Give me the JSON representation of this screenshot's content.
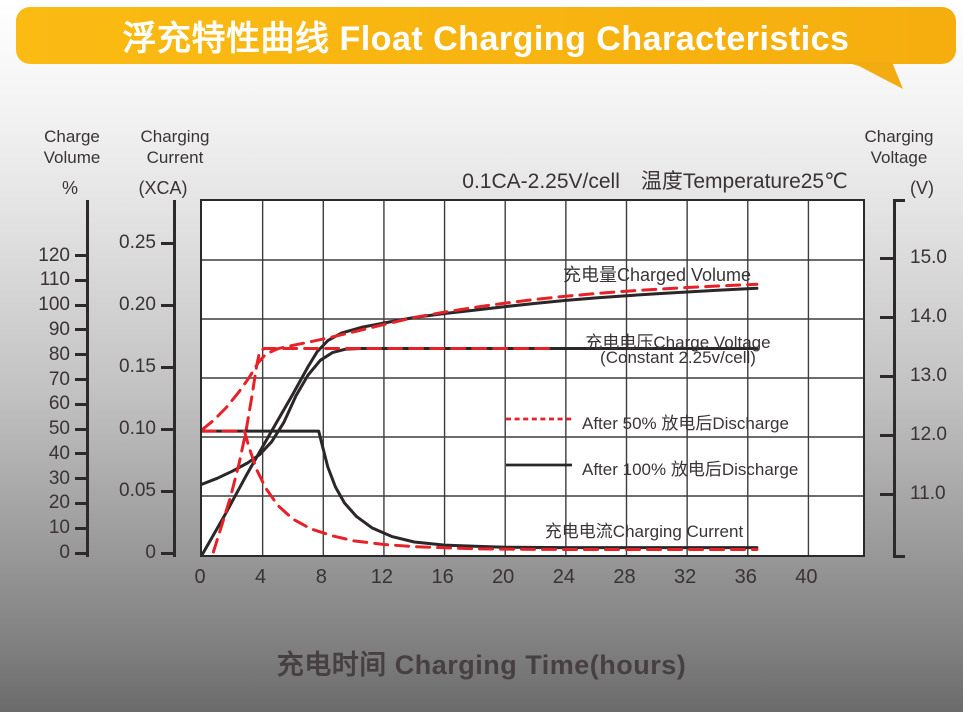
{
  "header": {
    "title": "浮充特性曲线 Float Charging Characteristics",
    "bg_color": "#F7B512"
  },
  "labels": {
    "charge_volume_1": "Charge",
    "charge_volume_2": "Volume",
    "unit_volume": "%",
    "charging_current_1": "Charging",
    "charging_current_2": "Current",
    "unit_current": "(XCA)",
    "charging_voltage_1": "Charging",
    "charging_voltage_2": "Voltage",
    "unit_voltage": "(V)"
  },
  "annotations": {
    "condition": "0.1CA-2.25V/cell　温度Temperature25℃",
    "charged_volume": "充电量Charged Volume",
    "charge_voltage_line1": "充电电压Charge Voltage",
    "charge_voltage_line2": "(Constant 2.25v/cell)",
    "charging_current": "充电电流Charging Current",
    "x_axis_title": "充电时间 Charging Time(hours)"
  },
  "legend": [
    {
      "label": "After 50% 放电后Discharge",
      "color": "#E62128",
      "style": "dashed"
    },
    {
      "label": "After 100% 放电后Discharge",
      "color": "#2B2628",
      "style": "solid"
    }
  ],
  "colors": {
    "red": "#E62128",
    "black": "#2B2628",
    "grid": "#3d3d3d",
    "accent_yellow": "#F7B512"
  },
  "chart_data": {
    "type": "line",
    "title": "0.1CA-2.25V/cell 温度Temperature25℃",
    "x": {
      "label": "充电时间 Charging Time(hours)",
      "unit": "hours",
      "range": [
        0,
        43.6
      ],
      "ticks": [
        0,
        4,
        8,
        12,
        16,
        20,
        24,
        28,
        32,
        36,
        40
      ],
      "tick_labels": [
        "0",
        "4",
        "8",
        "12",
        "16",
        "20",
        "24",
        "28",
        "32",
        "36",
        "40"
      ]
    },
    "y_axes": {
      "volume": {
        "label": "Charge Volume",
        "unit": "%",
        "range": [
          0,
          142.8
        ],
        "ticks": [
          0,
          10,
          20,
          30,
          40,
          50,
          60,
          70,
          80,
          90,
          100,
          110,
          120
        ],
        "tick_labels": [
          "0",
          "10",
          "20",
          "30",
          "40",
          "50",
          "60",
          "70",
          "80",
          "90",
          "100",
          "110",
          "120"
        ]
      },
      "current": {
        "label": "Charging Current",
        "unit": "XCA",
        "range": [
          0,
          0.2857
        ],
        "ticks": [
          0,
          0.05,
          0.1,
          0.15,
          0.2,
          0.25
        ],
        "tick_labels": [
          "0",
          "0.05",
          "0.10",
          "0.15",
          "0.20",
          "0.25"
        ]
      },
      "voltage": {
        "label": "Charging Voltage",
        "unit": "V",
        "range": [
          10,
          16
        ],
        "ticks": [
          11,
          12,
          13,
          14,
          15
        ],
        "tick_labels": [
          "11.0",
          "12.0",
          "13.0",
          "14.0",
          "15.0"
        ],
        "gridlines": true
      }
    },
    "series": [
      {
        "name": "charged-volume-after-100pct-discharge",
        "axis": "volume",
        "color": "#2B2628",
        "style": "solid",
        "points": [
          [
            0,
            0
          ],
          [
            1.5,
            16
          ],
          [
            3,
            33
          ],
          [
            4.5,
            49
          ],
          [
            6,
            65
          ],
          [
            7,
            76
          ],
          [
            7.6,
            82
          ],
          [
            8.3,
            86.5
          ],
          [
            9.2,
            89.5
          ],
          [
            10.5,
            91.8
          ],
          [
            12,
            93.6
          ],
          [
            14,
            95.8
          ],
          [
            16,
            97.4
          ],
          [
            18,
            98.8
          ],
          [
            20,
            100.2
          ],
          [
            22,
            101.5
          ],
          [
            24,
            102.7
          ],
          [
            26,
            103.7
          ],
          [
            28,
            104.6
          ],
          [
            30,
            105.4
          ],
          [
            32,
            106.1
          ],
          [
            34,
            106.8
          ],
          [
            36.6,
            107.6
          ]
        ]
      },
      {
        "name": "charged-volume-after-50pct-discharge",
        "axis": "volume",
        "color": "#E62128",
        "style": "dashed",
        "points": [
          [
            0,
            50.5
          ],
          [
            0.8,
            54.5
          ],
          [
            1.6,
            59.5
          ],
          [
            2.4,
            65.5
          ],
          [
            3.1,
            71.5
          ],
          [
            3.7,
            77.5
          ],
          [
            4.2,
            81
          ],
          [
            5,
            83.2
          ],
          [
            6,
            84.6
          ],
          [
            7,
            85.8
          ],
          [
            8.5,
            87.8
          ],
          [
            10,
            90
          ],
          [
            12,
            93
          ],
          [
            14,
            95.8
          ],
          [
            16,
            98
          ],
          [
            18,
            99.9
          ],
          [
            20,
            101.6
          ],
          [
            22,
            103.1
          ],
          [
            24,
            104.4
          ],
          [
            26,
            105.5
          ],
          [
            28,
            106.4
          ],
          [
            30,
            107.2
          ],
          [
            32,
            107.9
          ],
          [
            34,
            108.5
          ],
          [
            36.6,
            109.2
          ]
        ]
      },
      {
        "name": "charge-voltage-after-100pct-discharge",
        "axis": "voltage",
        "color": "#2B2628",
        "style": "solid",
        "points": [
          [
            0,
            11.2
          ],
          [
            1,
            11.3
          ],
          [
            2,
            11.42
          ],
          [
            3,
            11.56
          ],
          [
            3.8,
            11.7
          ],
          [
            4.6,
            11.92
          ],
          [
            5.4,
            12.25
          ],
          [
            6.2,
            12.7
          ],
          [
            7,
            13.05
          ],
          [
            7.8,
            13.3
          ],
          [
            8.6,
            13.43
          ],
          [
            9.5,
            13.49
          ],
          [
            10.5,
            13.5
          ],
          [
            36.6,
            13.5
          ]
        ]
      },
      {
        "name": "charge-voltage-after-50pct-discharge",
        "axis": "voltage",
        "color": "#E62128",
        "style": "dashed",
        "points": [
          [
            0.75,
            10.05
          ],
          [
            1.3,
            10.5
          ],
          [
            1.9,
            11.0
          ],
          [
            2.45,
            11.55
          ],
          [
            2.9,
            12.1
          ],
          [
            3.3,
            12.7
          ],
          [
            3.6,
            13.2
          ],
          [
            3.8,
            13.45
          ],
          [
            4.1,
            13.5
          ],
          [
            23,
            13.5
          ]
        ]
      },
      {
        "name": "charging-current-after-100pct-discharge",
        "axis": "current",
        "color": "#2B2628",
        "style": "solid",
        "points": [
          [
            0,
            0.1
          ],
          [
            7.7,
            0.1
          ],
          [
            7.9,
            0.09
          ],
          [
            8.3,
            0.071
          ],
          [
            8.8,
            0.055
          ],
          [
            9.4,
            0.042
          ],
          [
            10.2,
            0.031
          ],
          [
            11.2,
            0.022
          ],
          [
            12.5,
            0.015
          ],
          [
            14,
            0.0105
          ],
          [
            16,
            0.008
          ],
          [
            18,
            0.007
          ],
          [
            20,
            0.0063
          ],
          [
            24,
            0.006
          ],
          [
            36.6,
            0.006
          ]
        ]
      },
      {
        "name": "charging-current-after-50pct-discharge",
        "axis": "current",
        "color": "#E62128",
        "style": "dashed",
        "points": [
          [
            0,
            0.1
          ],
          [
            2.8,
            0.1
          ],
          [
            3.1,
            0.087
          ],
          [
            3.6,
            0.069
          ],
          [
            4.2,
            0.054
          ],
          [
            5,
            0.04
          ],
          [
            6,
            0.029
          ],
          [
            7.2,
            0.021
          ],
          [
            8.6,
            0.0155
          ],
          [
            10,
            0.0115
          ],
          [
            12,
            0.0085
          ],
          [
            14,
            0.0068
          ],
          [
            16,
            0.0058
          ],
          [
            18,
            0.005
          ],
          [
            21,
            0.0046
          ],
          [
            25,
            0.0044
          ],
          [
            36.6,
            0.0044
          ]
        ]
      }
    ],
    "condition": "0.1CA-2.25V/cell, Temperature 25°C",
    "legend_position": "inside-right"
  }
}
